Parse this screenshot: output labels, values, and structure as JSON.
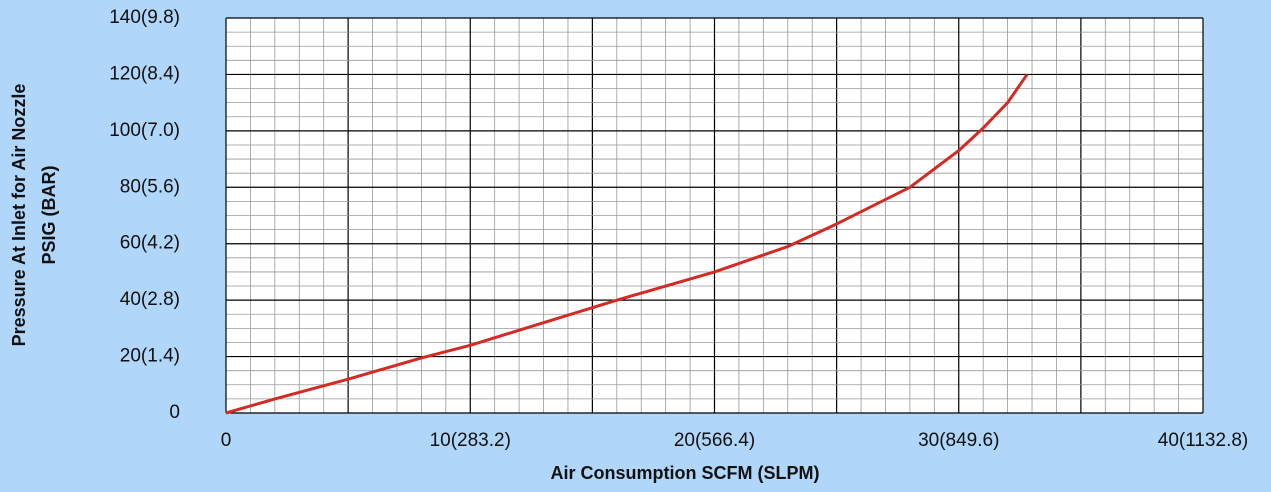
{
  "chart_data": {
    "type": "line",
    "xlabel": "Air Consumption SCFM (SLPM)",
    "ylabel": [
      "Pressure At Inlet for Air Nozzle",
      "PSIG (BAR)"
    ],
    "x": [
      0,
      2,
      5,
      8,
      10,
      13,
      16,
      20,
      23,
      25,
      28,
      30,
      31,
      32,
      32.8
    ],
    "series": [
      {
        "color": "#d42a24",
        "values": [
          0,
          5,
          12,
          19.5,
          24,
          32,
          40,
          50,
          59,
          67,
          80,
          93,
          101,
          110,
          120
        ]
      }
    ],
    "xlim": [
      0,
      40
    ],
    "xticks": [
      {
        "value": 0,
        "label": "0"
      },
      {
        "value": 10,
        "label": "10(283.2)"
      },
      {
        "value": 20,
        "label": "20(566.4)"
      },
      {
        "value": 30,
        "label": "30(849.6)"
      },
      {
        "value": 40,
        "label": "40(1132.8)"
      }
    ],
    "ylim": [
      0,
      140
    ],
    "yticks": [
      {
        "value": 0,
        "label": "0"
      },
      {
        "value": 20,
        "label": "20(1.4)"
      },
      {
        "value": 40,
        "label": "40(2.8)"
      },
      {
        "value": 60,
        "label": "60(4.2)"
      },
      {
        "value": 80,
        "label": "80(5.6)"
      },
      {
        "value": 100,
        "label": "100(7.0)"
      },
      {
        "value": 120,
        "label": "120(8.4)"
      },
      {
        "value": 140,
        "label": "140(9.8)"
      }
    ],
    "grid": true
  }
}
